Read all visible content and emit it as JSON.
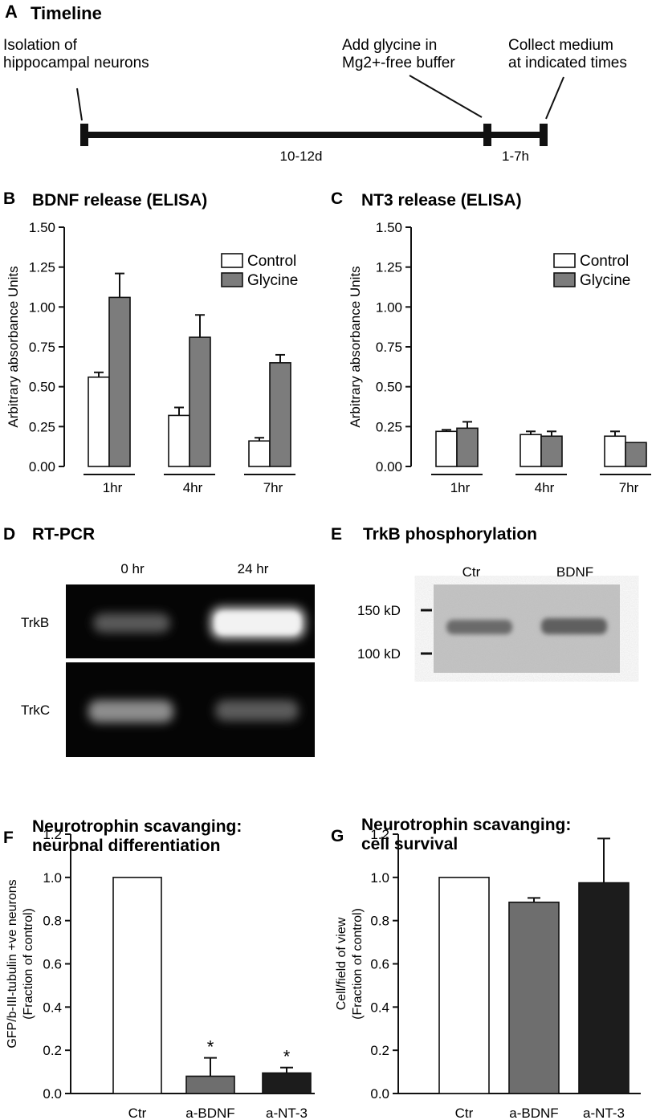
{
  "panel_a": {
    "letter": "A",
    "title": "Timeline",
    "label_start": [
      "Isolation of",
      "hippocampal neurons"
    ],
    "label_mid": [
      "Add glycine in",
      "Mg2+-free buffer"
    ],
    "label_end": [
      "Collect medium",
      "at indicated times"
    ],
    "duration_1": "10-12d",
    "duration_2": "1-7h"
  },
  "panel_d": {
    "letter": "D",
    "title": "RT-PCR",
    "columns": [
      "0 hr",
      "24 hr"
    ],
    "rows": [
      "TrkB",
      "TrkC"
    ]
  },
  "panel_e": {
    "letter": "E",
    "title": "TrkB phosphorylation",
    "columns": [
      "Ctr",
      "BDNF"
    ],
    "markers": [
      "150 kD",
      "100 kD"
    ]
  },
  "colors": {
    "control": "#ffffff",
    "glycine": "#7c7c7c",
    "ctr": "#ffffff",
    "a_bdnf": "#6e6e6e",
    "a_nt3": "#1c1c1c"
  },
  "chart_data": [
    {
      "panel": "B",
      "type": "bar",
      "title": "BDNF release (ELISA)",
      "ylabel": "Arbitrary absorbance Units",
      "xlabel": "",
      "categories": [
        "1hr",
        "4hr",
        "7hr"
      ],
      "ylim": [
        0,
        1.5
      ],
      "yticks": [
        "0.00",
        "0.25",
        "0.50",
        "0.75",
        "1.00",
        "1.25",
        "1.50"
      ],
      "legend": "top-right",
      "series": [
        {
          "name": "Control",
          "values": [
            0.56,
            0.32,
            0.16
          ],
          "errors": [
            0.03,
            0.05,
            0.02
          ]
        },
        {
          "name": "Glycine",
          "values": [
            1.06,
            0.81,
            0.65
          ],
          "errors": [
            0.15,
            0.14,
            0.05
          ]
        }
      ]
    },
    {
      "panel": "C",
      "type": "bar",
      "title": "NT3 release (ELISA)",
      "ylabel": "Arbitrary absorbance Units",
      "xlabel": "",
      "categories": [
        "1hr",
        "4hr",
        "7hr"
      ],
      "ylim": [
        0,
        1.5
      ],
      "yticks": [
        "0.00",
        "0.25",
        "0.50",
        "0.75",
        "1.00",
        "1.25",
        "1.50"
      ],
      "legend": "top-right",
      "series": [
        {
          "name": "Control",
          "values": [
            0.22,
            0.2,
            0.19
          ],
          "errors": [
            0.01,
            0.02,
            0.03
          ]
        },
        {
          "name": "Glycine",
          "values": [
            0.24,
            0.19,
            0.15
          ],
          "errors": [
            0.04,
            0.03,
            0.0
          ]
        }
      ]
    },
    {
      "panel": "F",
      "type": "bar",
      "title": [
        "Neurotrophin scavanging:",
        "neuronal differentiation"
      ],
      "ylabel": [
        "GFP/b-III-tubulin +ve neurons",
        "(Fraction of control)"
      ],
      "xlabel": "",
      "categories": [
        "Ctr",
        "a-BDNF",
        "a-NT-3"
      ],
      "values": [
        1.0,
        0.08,
        0.095
      ],
      "errors": [
        0.0,
        0.085,
        0.025
      ],
      "annotations": [
        "",
        "*",
        "*"
      ],
      "ylim": [
        0,
        1.2
      ],
      "yticks": [
        "0.0",
        "0.2",
        "0.4",
        "0.6",
        "0.8",
        "1.0",
        "1.2"
      ]
    },
    {
      "panel": "G",
      "type": "bar",
      "title": [
        "Neurotrophin scavanging:",
        "cell survival"
      ],
      "ylabel": [
        "Cell/field of view",
        "(Fraction of control)"
      ],
      "xlabel": "",
      "categories": [
        "Ctr",
        "a-BDNF",
        "a-NT-3"
      ],
      "values": [
        1.0,
        0.885,
        0.975
      ],
      "errors": [
        0.0,
        0.02,
        0.205
      ],
      "annotations": [
        "",
        "",
        ""
      ],
      "ylim": [
        0,
        1.2
      ],
      "yticks": [
        "0.0",
        "0.2",
        "0.4",
        "0.6",
        "0.8",
        "1.0",
        "1.2"
      ]
    }
  ]
}
